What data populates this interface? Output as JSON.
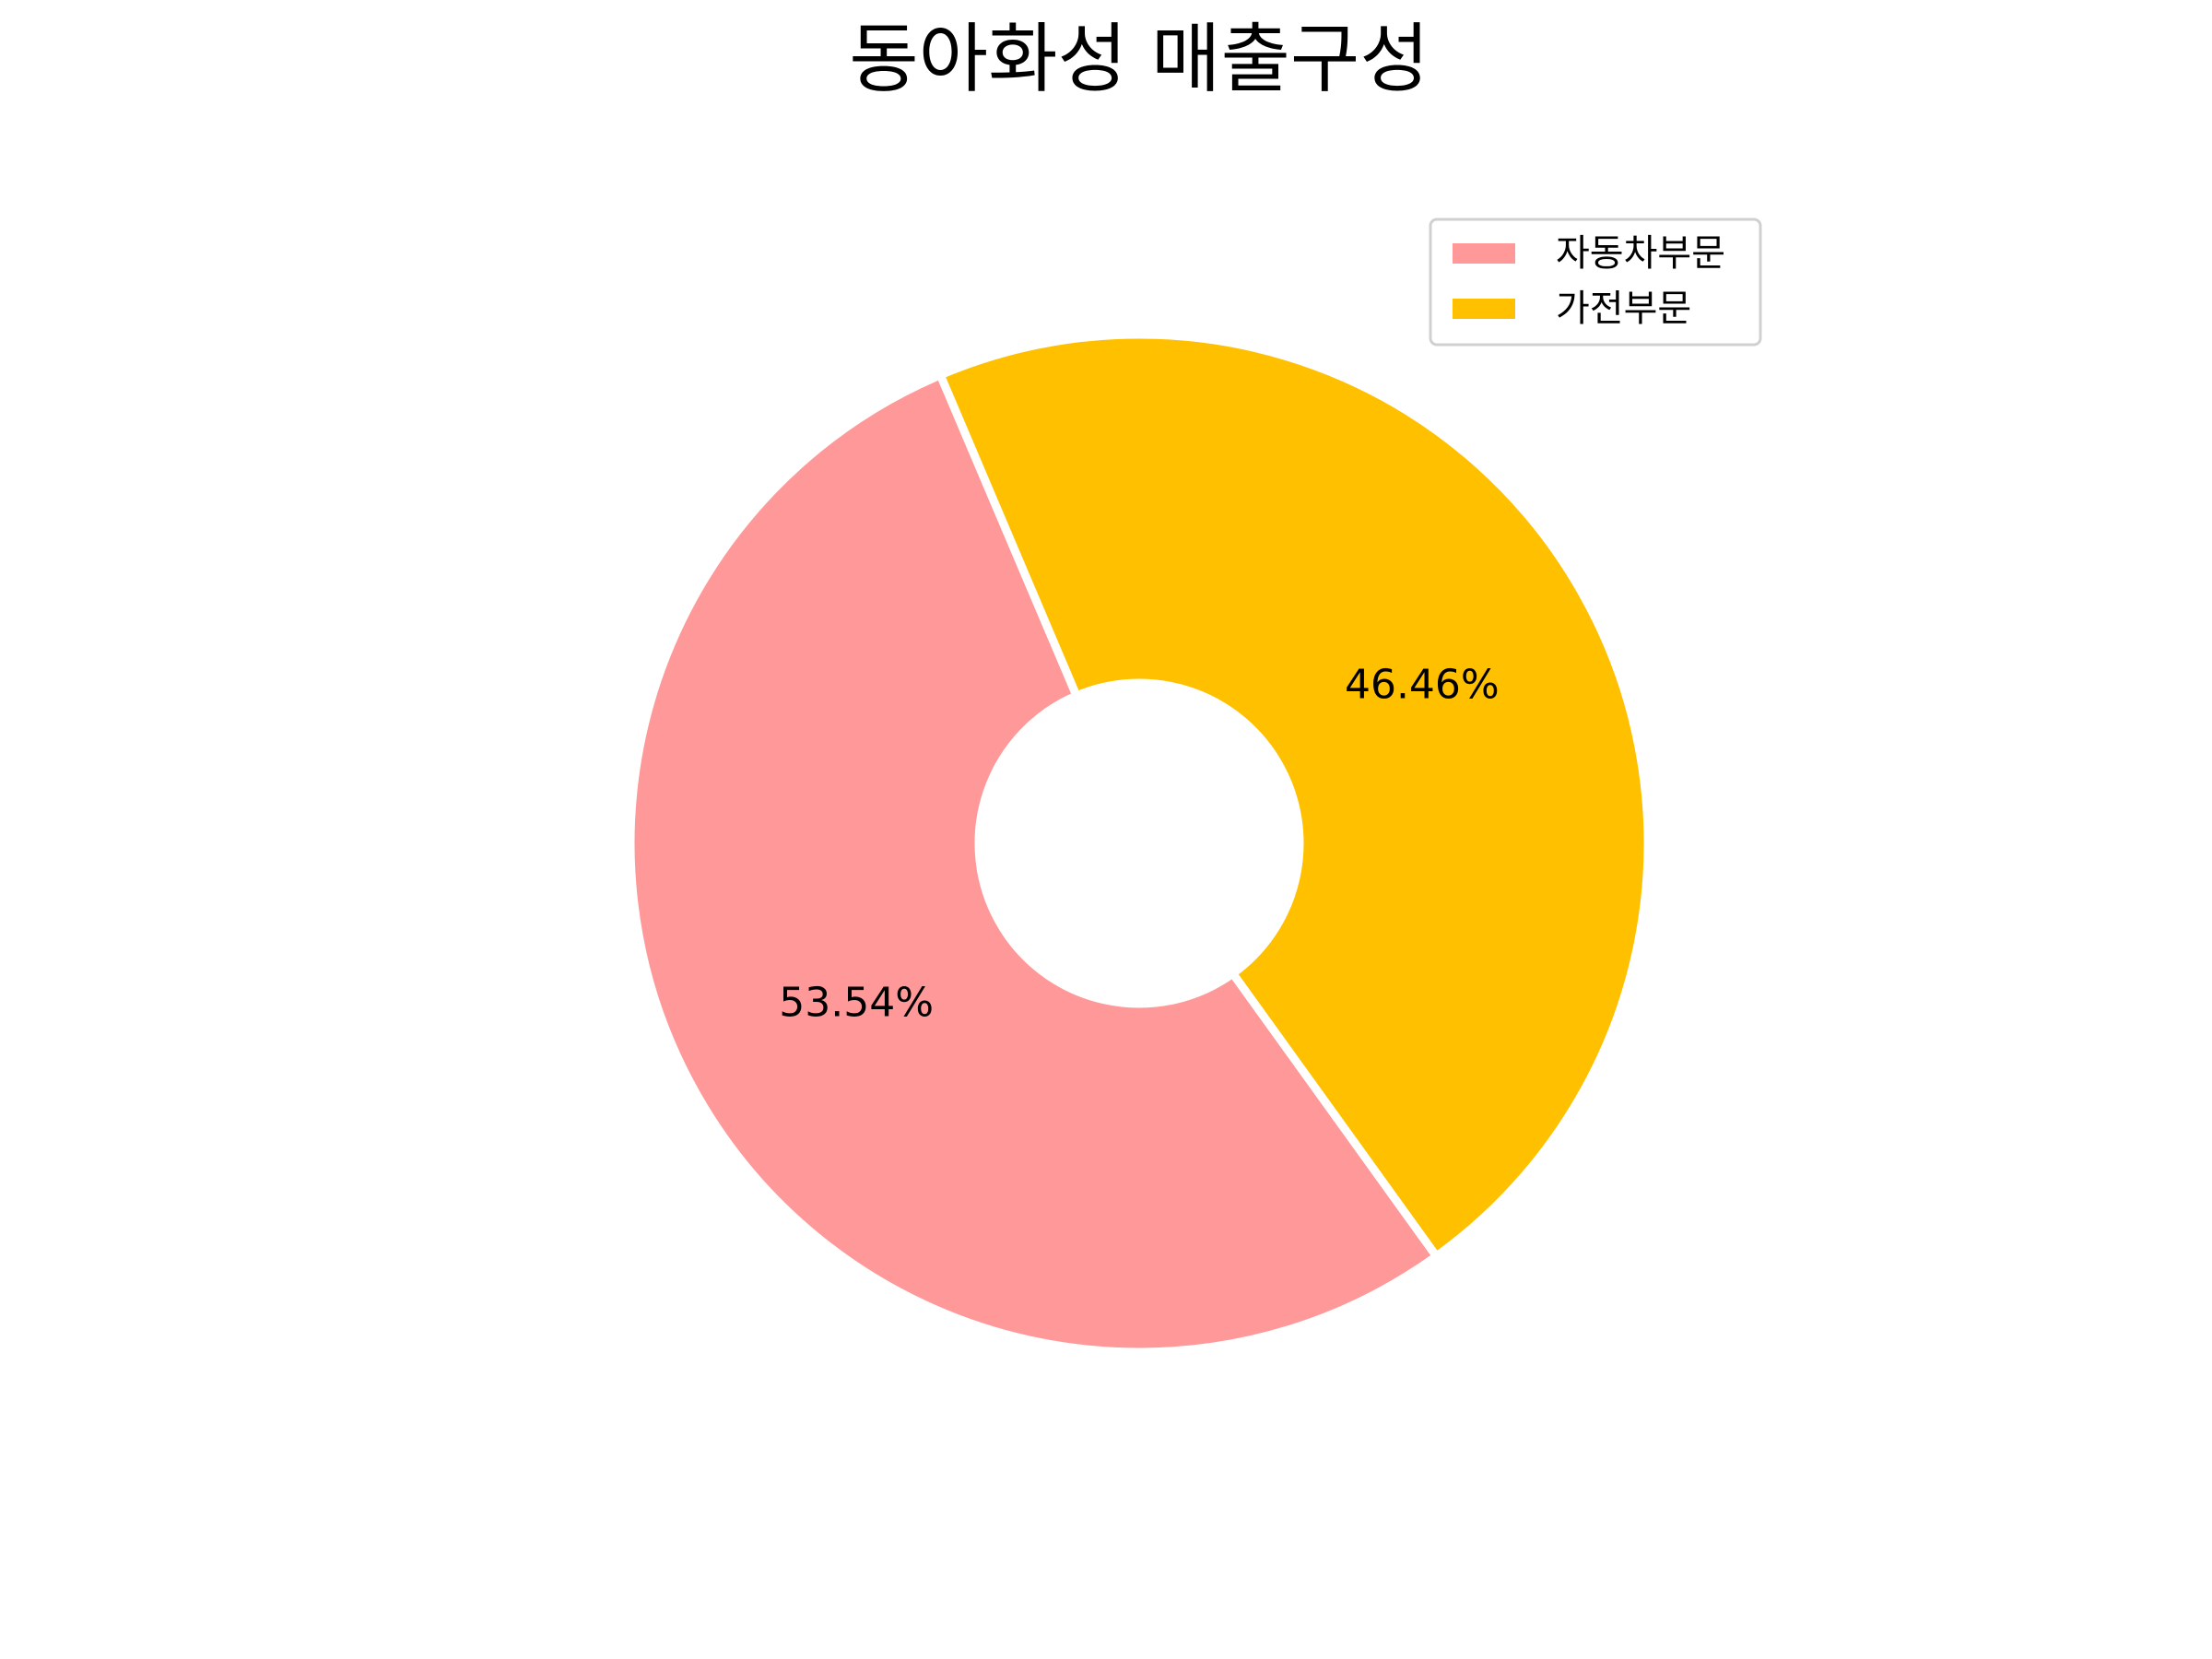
{
  "chart_data": {
    "type": "pie",
    "variant": "donut",
    "title": "동아화성 매출구성",
    "categories": [
      "자동차부문",
      "가전부문"
    ],
    "values": [
      53.54,
      46.46
    ],
    "value_labels": [
      "53.54%",
      "46.46%"
    ],
    "unit": "%",
    "colors": [
      "#ff9999",
      "#ffc000"
    ],
    "legend": {
      "position": "upper-right",
      "entries": [
        "자동차부문",
        "가전부문"
      ]
    },
    "grid": false
  }
}
